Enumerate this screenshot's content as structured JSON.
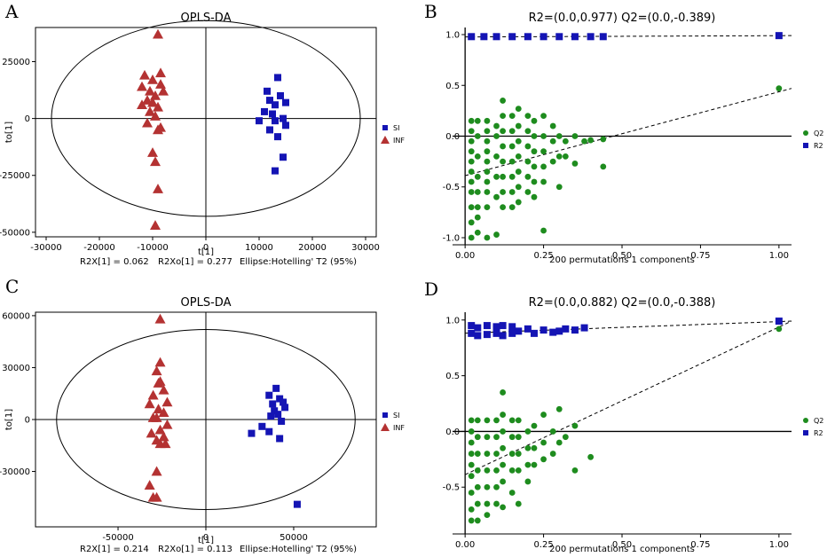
{
  "colors": {
    "si": "#1414b4",
    "inf": "#b43232",
    "q2": "#1e8c1e",
    "r2": "#1414b4",
    "axis": "#000000"
  },
  "chart_data": [
    {
      "panel": "A",
      "type": "scatter",
      "title": "OPLS-DA",
      "xlabel": "t[1]",
      "ylabel": "to[1]",
      "xlim": [
        -32000,
        32000
      ],
      "ylim": [
        -52000,
        40000
      ],
      "xticks": [
        -30000,
        -20000,
        -10000,
        0,
        10000,
        20000,
        30000
      ],
      "xtick_labels": [
        "-30000",
        "-20000",
        "-10000",
        "0",
        "10000",
        "20000",
        "30000"
      ],
      "yticks": [
        25000,
        0,
        -25000,
        -50000
      ],
      "ytick_labels": [
        "25000",
        "0",
        "-25000",
        "-50000"
      ],
      "ellipse": {
        "cx": 0,
        "cy": 0,
        "rx": 29000,
        "ry": 43000
      },
      "legend": [
        "SI",
        "INF"
      ],
      "legend_position": "right",
      "footer": [
        "R2X[1]  =  0.062",
        "R2Xo[1]  =  0.277",
        "Ellipse:Hotelling' T2 (95%)"
      ],
      "series": [
        {
          "name": "SI",
          "marker": "square",
          "x": [
            13500,
            11500,
            14000,
            12000,
            13000,
            15000,
            11000,
            12500,
            14500,
            13000,
            15000,
            12000,
            13500,
            10000,
            14500,
            13000
          ],
          "y": [
            18000,
            12000,
            10000,
            8000,
            6000,
            7000,
            3000,
            2000,
            0,
            -1000,
            -3000,
            -5000,
            -8000,
            -1000,
            -17000,
            -23000
          ]
        },
        {
          "name": "INF",
          "marker": "triangle",
          "x": [
            -9000,
            -11500,
            -8500,
            -10000,
            -12000,
            -8500,
            -10500,
            -9500,
            -11000,
            -8000,
            -12000,
            -10000,
            -9000,
            -10500,
            -9500,
            -11000,
            -8500,
            -9000,
            -10000,
            -9500,
            -9000,
            -9500
          ],
          "y": [
            37000,
            19000,
            20000,
            17000,
            14000,
            15000,
            12000,
            10000,
            8000,
            12000,
            6000,
            7000,
            5000,
            3000,
            1000,
            -2000,
            -4000,
            -5000,
            -15000,
            -19000,
            -31000,
            -47000
          ]
        }
      ]
    },
    {
      "panel": "B",
      "type": "scatter",
      "title": "R2=(0.0,0.977)   Q2=(0.0,-0.389)",
      "xlabel": "200 permutations 1 components",
      "ylabel": "",
      "xlim": [
        -0.04,
        1.04
      ],
      "ylim": [
        -1.07,
        1.07
      ],
      "xticks": [
        0,
        0.25,
        0.5,
        0.75,
        1
      ],
      "xtick_labels": [
        "0.00",
        "0.25",
        "0.50",
        "0.75",
        "1.00"
      ],
      "yticks": [
        1,
        0.5,
        0,
        -0.5,
        -1
      ],
      "ytick_labels": [
        "1.0",
        "0.5",
        "0.0",
        "-0.5",
        "-1.0"
      ],
      "legend": [
        "Q2",
        "R2"
      ],
      "legend_position": "right",
      "trend_lines": [
        {
          "name": "R2",
          "intercept": 0.977,
          "end": 0.99
        },
        {
          "name": "Q2",
          "intercept": -0.389,
          "end": 0.47
        }
      ],
      "series": [
        {
          "name": "R2",
          "marker": "square",
          "x": [
            0.02,
            0.06,
            0.1,
            0.15,
            0.2,
            0.25,
            0.3,
            0.35,
            0.4,
            0.44,
            1.0
          ],
          "y": [
            0.98,
            0.98,
            0.98,
            0.98,
            0.98,
            0.98,
            0.98,
            0.98,
            0.98,
            0.98,
            0.99
          ]
        },
        {
          "name": "Q2",
          "marker": "circle",
          "x": [
            0.02,
            0.02,
            0.02,
            0.02,
            0.02,
            0.02,
            0.02,
            0.02,
            0.02,
            0.02,
            0.02,
            0.04,
            0.04,
            0.04,
            0.04,
            0.04,
            0.04,
            0.04,
            0.04,
            0.07,
            0.07,
            0.07,
            0.07,
            0.07,
            0.07,
            0.07,
            0.07,
            0.07,
            0.07,
            0.1,
            0.1,
            0.1,
            0.1,
            0.1,
            0.1,
            0.12,
            0.12,
            0.12,
            0.12,
            0.12,
            0.12,
            0.12,
            0.12,
            0.15,
            0.15,
            0.15,
            0.15,
            0.15,
            0.15,
            0.15,
            0.17,
            0.17,
            0.17,
            0.17,
            0.17,
            0.17,
            0.17,
            0.2,
            0.2,
            0.2,
            0.2,
            0.2,
            0.2,
            0.22,
            0.22,
            0.22,
            0.22,
            0.22,
            0.22,
            0.25,
            0.25,
            0.25,
            0.25,
            0.25,
            0.25,
            0.28,
            0.28,
            0.28,
            0.3,
            0.3,
            0.3,
            0.32,
            0.32,
            0.35,
            0.35,
            0.38,
            0.4,
            0.44,
            0.44,
            1.0
          ],
          "y": [
            0.15,
            0.05,
            -0.05,
            -0.15,
            -0.25,
            -0.35,
            -0.45,
            -0.55,
            -0.7,
            -0.85,
            -1.0,
            0.15,
            0.0,
            -0.2,
            -0.4,
            -0.55,
            -0.7,
            -0.8,
            -0.95,
            0.15,
            0.05,
            -0.05,
            -0.15,
            -0.25,
            -0.35,
            -0.45,
            -0.55,
            -0.7,
            -1.0,
            0.1,
            0.0,
            -0.2,
            -0.4,
            -0.6,
            -0.97,
            0.35,
            0.2,
            0.05,
            -0.1,
            -0.25,
            -0.4,
            -0.55,
            -0.7,
            0.2,
            0.05,
            -0.1,
            -0.25,
            -0.4,
            -0.55,
            -0.7,
            0.27,
            0.1,
            -0.05,
            -0.2,
            -0.35,
            -0.5,
            -0.65,
            0.2,
            0.05,
            -0.1,
            -0.25,
            -0.4,
            -0.55,
            0.15,
            0.0,
            -0.15,
            -0.3,
            -0.45,
            -0.6,
            0.2,
            0.0,
            -0.15,
            -0.3,
            -0.45,
            -0.93,
            0.1,
            -0.05,
            -0.25,
            0.0,
            -0.2,
            -0.5,
            -0.05,
            -0.2,
            0.0,
            -0.27,
            -0.05,
            -0.04,
            -0.03,
            -0.3,
            0.47
          ]
        }
      ]
    },
    {
      "panel": "C",
      "type": "scatter",
      "title": "OPLS-DA",
      "xlabel": "t[1]",
      "ylabel": "to[1]",
      "xlim": [
        -97000,
        97000
      ],
      "ylim": [
        -62000,
        62000
      ],
      "xticks": [
        -50000,
        0,
        50000
      ],
      "xtick_labels": [
        "-50000",
        "0",
        "50000"
      ],
      "yticks": [
        60000,
        30000,
        0,
        -30000
      ],
      "ytick_labels": [
        "60000",
        "30000",
        "0",
        "-30000"
      ],
      "ellipse": {
        "cx": 0,
        "cy": 0,
        "rx": 85000,
        "ry": 52000
      },
      "legend": [
        "SI",
        "INF"
      ],
      "legend_position": "right",
      "footer": [
        "R2X[1]  =  0.214",
        "R2Xo[1]  =  0.113",
        "Ellipse:Hotelling' T2 (95%)"
      ],
      "series": [
        {
          "name": "SI",
          "marker": "square",
          "x": [
            40000,
            36000,
            42000,
            38000,
            44000,
            45000,
            39000,
            41000,
            37000,
            43000,
            32000,
            36000,
            42000,
            26000,
            52000
          ],
          "y": [
            18000,
            14000,
            12000,
            9000,
            10000,
            7000,
            5000,
            3000,
            2000,
            -1000,
            -4000,
            -7000,
            -11000,
            -8000,
            -49000
          ]
        },
        {
          "name": "INF",
          "marker": "triangle",
          "x": [
            -26000,
            -26000,
            -28000,
            -27000,
            -26000,
            -24000,
            -30000,
            -32000,
            -22000,
            -27000,
            -24000,
            -30000,
            -28000,
            -22000,
            -26000,
            -31000,
            -24000,
            -28000,
            -26000,
            -23000,
            -28000,
            -32000,
            -30000,
            -28000
          ],
          "y": [
            58000,
            33000,
            28000,
            21000,
            22000,
            17000,
            14000,
            9000,
            10000,
            6000,
            4000,
            1000,
            1000,
            -3000,
            -6000,
            -8000,
            -10000,
            -12000,
            -14000,
            -14000,
            -30000,
            -38000,
            -45000,
            -45000
          ]
        }
      ]
    },
    {
      "panel": "D",
      "type": "scatter",
      "title": "R2=(0.0,0.882)   Q2=(0.0,-0.388)",
      "xlabel": "200 permutations 1 components",
      "ylabel": "",
      "xlim": [
        -0.04,
        1.04
      ],
      "ylim": [
        -0.92,
        1.07
      ],
      "xticks": [
        0,
        0.25,
        0.5,
        0.75,
        1
      ],
      "xtick_labels": [
        "0.00",
        "0.25",
        "0.50",
        "0.75",
        "1.00"
      ],
      "yticks": [
        1,
        0.5,
        0,
        -0.5
      ],
      "ytick_labels": [
        "1.0",
        "0.5",
        "0.0",
        "-0.5"
      ],
      "legend": [
        "Q2",
        "R2"
      ],
      "legend_position": "right",
      "trend_lines": [
        {
          "name": "R2",
          "intercept": 0.882,
          "end": 0.99
        },
        {
          "name": "Q2",
          "intercept": -0.388,
          "end": 0.99
        }
      ],
      "series": [
        {
          "name": "R2",
          "marker": "square",
          "x": [
            0.02,
            0.02,
            0.04,
            0.04,
            0.07,
            0.07,
            0.1,
            0.1,
            0.12,
            0.12,
            0.15,
            0.15,
            0.17,
            0.2,
            0.22,
            0.25,
            0.28,
            0.3,
            0.32,
            0.35,
            0.38,
            1.0
          ],
          "y": [
            0.95,
            0.88,
            0.93,
            0.86,
            0.95,
            0.87,
            0.94,
            0.88,
            0.95,
            0.86,
            0.94,
            0.88,
            0.9,
            0.92,
            0.88,
            0.91,
            0.89,
            0.9,
            0.92,
            0.91,
            0.93,
            0.99
          ]
        },
        {
          "name": "Q2",
          "marker": "circle",
          "x": [
            0.02,
            0.02,
            0.02,
            0.02,
            0.02,
            0.02,
            0.02,
            0.02,
            0.02,
            0.04,
            0.04,
            0.04,
            0.04,
            0.04,
            0.04,
            0.04,
            0.07,
            0.07,
            0.07,
            0.07,
            0.07,
            0.07,
            0.07,
            0.1,
            0.1,
            0.1,
            0.1,
            0.1,
            0.1,
            0.12,
            0.12,
            0.12,
            0.12,
            0.12,
            0.12,
            0.12,
            0.15,
            0.15,
            0.15,
            0.15,
            0.15,
            0.17,
            0.17,
            0.17,
            0.17,
            0.17,
            0.2,
            0.2,
            0.2,
            0.2,
            0.22,
            0.22,
            0.22,
            0.25,
            0.25,
            0.25,
            0.28,
            0.28,
            0.3,
            0.3,
            0.32,
            0.35,
            0.35,
            0.4,
            1.0
          ],
          "y": [
            0.1,
            0.0,
            -0.1,
            -0.2,
            -0.3,
            -0.4,
            -0.55,
            -0.7,
            -0.8,
            0.1,
            -0.05,
            -0.2,
            -0.35,
            -0.5,
            -0.65,
            -0.8,
            0.1,
            -0.05,
            -0.2,
            -0.35,
            -0.5,
            -0.65,
            -0.75,
            0.1,
            -0.05,
            -0.2,
            -0.35,
            -0.5,
            -0.65,
            0.35,
            0.15,
            0.0,
            -0.15,
            -0.3,
            -0.45,
            -0.68,
            0.1,
            -0.05,
            -0.2,
            -0.35,
            -0.55,
            0.1,
            -0.05,
            -0.2,
            -0.35,
            -0.65,
            0.0,
            -0.15,
            -0.3,
            -0.45,
            0.05,
            -0.15,
            -0.3,
            0.15,
            -0.1,
            -0.25,
            0.0,
            -0.2,
            0.2,
            -0.1,
            -0.05,
            0.05,
            -0.35,
            -0.23,
            0.92
          ]
        }
      ]
    }
  ]
}
